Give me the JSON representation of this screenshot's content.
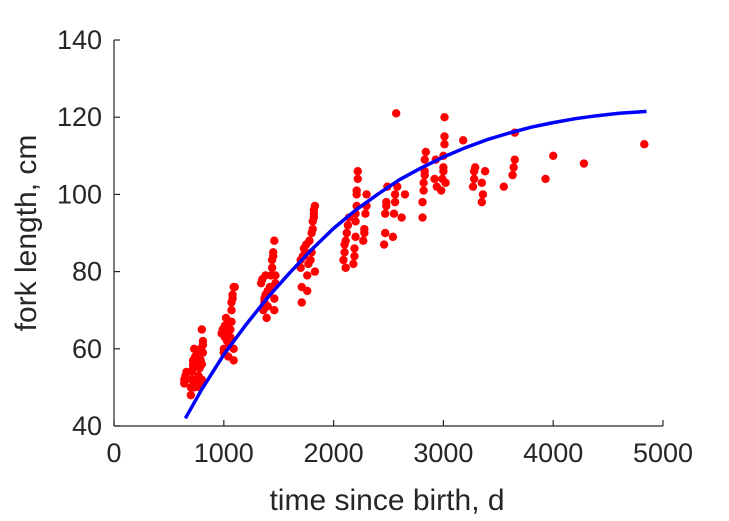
{
  "chart_data": {
    "type": "scatter",
    "xlabel": "time since birth, d",
    "ylabel": "fork length, cm",
    "xlim": [
      0,
      5000
    ],
    "ylim": [
      40,
      140
    ],
    "xticks": [
      "0",
      "1000",
      "2000",
      "3000",
      "4000",
      "5000"
    ],
    "yticks": [
      "40",
      "60",
      "80",
      "100",
      "120",
      "140"
    ],
    "grid": false,
    "colors": {
      "points": "#ff0000",
      "fit": "#0000ff",
      "axis": "#262626"
    },
    "series": [
      {
        "kind": "points",
        "x": [
          640,
          640,
          650,
          650,
          660,
          700,
          700,
          710,
          710,
          720,
          720,
          720,
          730,
          730,
          730,
          740,
          740,
          750,
          750,
          760,
          760,
          770,
          780,
          780,
          780,
          790,
          790,
          790,
          800,
          800,
          800,
          810,
          810,
          810,
          980,
          990,
          1000,
          1000,
          1010,
          1010,
          1020,
          1030,
          1040,
          1040,
          1050,
          1060,
          1060,
          1060,
          1070,
          1070,
          1070,
          1080,
          1080,
          1090,
          1090,
          1090,
          1100,
          1340,
          1350,
          1360,
          1370,
          1370,
          1380,
          1380,
          1390,
          1400,
          1400,
          1420,
          1430,
          1440,
          1440,
          1450,
          1450,
          1460,
          1460,
          1460,
          1470,
          1470,
          1700,
          1700,
          1710,
          1710,
          1720,
          1730,
          1730,
          1740,
          1750,
          1760,
          1760,
          1770,
          1780,
          1790,
          1800,
          1800,
          1810,
          1810,
          1820,
          1820,
          1820,
          1830,
          1830,
          2090,
          2100,
          2100,
          2110,
          2110,
          2120,
          2130,
          2140,
          2180,
          2190,
          2190,
          2200,
          2200,
          2200,
          2210,
          2210,
          2210,
          2220,
          2220,
          2270,
          2280,
          2280,
          2290,
          2300,
          2300,
          2460,
          2470,
          2470,
          2480,
          2480,
          2490,
          2540,
          2550,
          2560,
          2560,
          2570,
          2580,
          2620,
          2650,
          2810,
          2810,
          2820,
          2820,
          2830,
          2830,
          2830,
          2840,
          2920,
          2930,
          2940,
          2980,
          2990,
          3000,
          3000,
          3000,
          3010,
          3010,
          3010,
          3020,
          3180,
          3270,
          3280,
          3280,
          3290,
          3350,
          3350,
          3360,
          3380,
          3550,
          3630,
          3640,
          3650,
          3650,
          3930,
          4000,
          4280,
          4830
        ],
        "y": [
          51,
          52,
          52,
          53,
          54,
          48,
          50,
          52,
          54,
          55,
          56,
          57,
          50,
          57,
          60,
          51,
          58,
          56,
          58,
          59,
          52,
          53,
          50,
          55,
          57,
          51,
          57,
          60,
          65,
          52,
          56,
          59,
          61,
          62,
          64,
          65,
          59,
          60,
          63,
          66,
          68,
          62,
          64,
          58,
          61,
          63,
          65,
          67,
          67,
          70,
          72,
          73,
          74,
          57,
          60,
          76,
          76,
          77,
          78,
          70,
          72,
          73,
          74,
          79,
          68,
          71,
          75,
          76,
          79,
          81,
          83,
          84,
          85,
          70,
          73,
          88,
          77,
          79,
          81,
          83,
          72,
          76,
          84,
          86,
          84,
          85,
          87,
          75,
          79,
          82,
          88,
          83,
          85,
          90,
          91,
          93,
          94,
          95,
          96,
          97,
          80,
          83,
          85,
          87,
          88,
          81,
          90,
          92,
          94,
          82,
          84,
          86,
          89,
          93,
          95,
          97,
          100,
          101,
          104,
          106,
          88,
          90,
          91,
          95,
          97,
          100,
          87,
          90,
          95,
          97,
          98,
          102,
          89,
          95,
          98,
          100,
          121,
          102,
          94,
          100,
          94,
          98,
          101,
          103,
          105,
          106,
          109,
          111,
          104,
          109,
          102,
          101,
          104,
          106,
          107,
          110,
          113,
          115,
          120,
          103,
          114,
          102,
          104,
          106,
          107,
          103,
          98,
          100,
          106,
          102,
          105,
          107,
          109,
          116,
          104,
          110,
          108,
          113
        ]
      },
      {
        "kind": "line",
        "x": [
          650,
          800,
          1000,
          1200,
          1400,
          1600,
          1800,
          2000,
          2200,
          2400,
          2600,
          2800,
          3000,
          3200,
          3400,
          3600,
          3800,
          4000,
          4200,
          4400,
          4600,
          4850
        ],
        "y": [
          42,
          49.5,
          58.5,
          66.2,
          73.3,
          79.7,
          85.7,
          91.2,
          95.9,
          100.0,
          103.8,
          106.9,
          109.7,
          112.1,
          114.2,
          115.9,
          117.4,
          118.6,
          119.6,
          120.4,
          121.0,
          121.5
        ]
      }
    ]
  }
}
